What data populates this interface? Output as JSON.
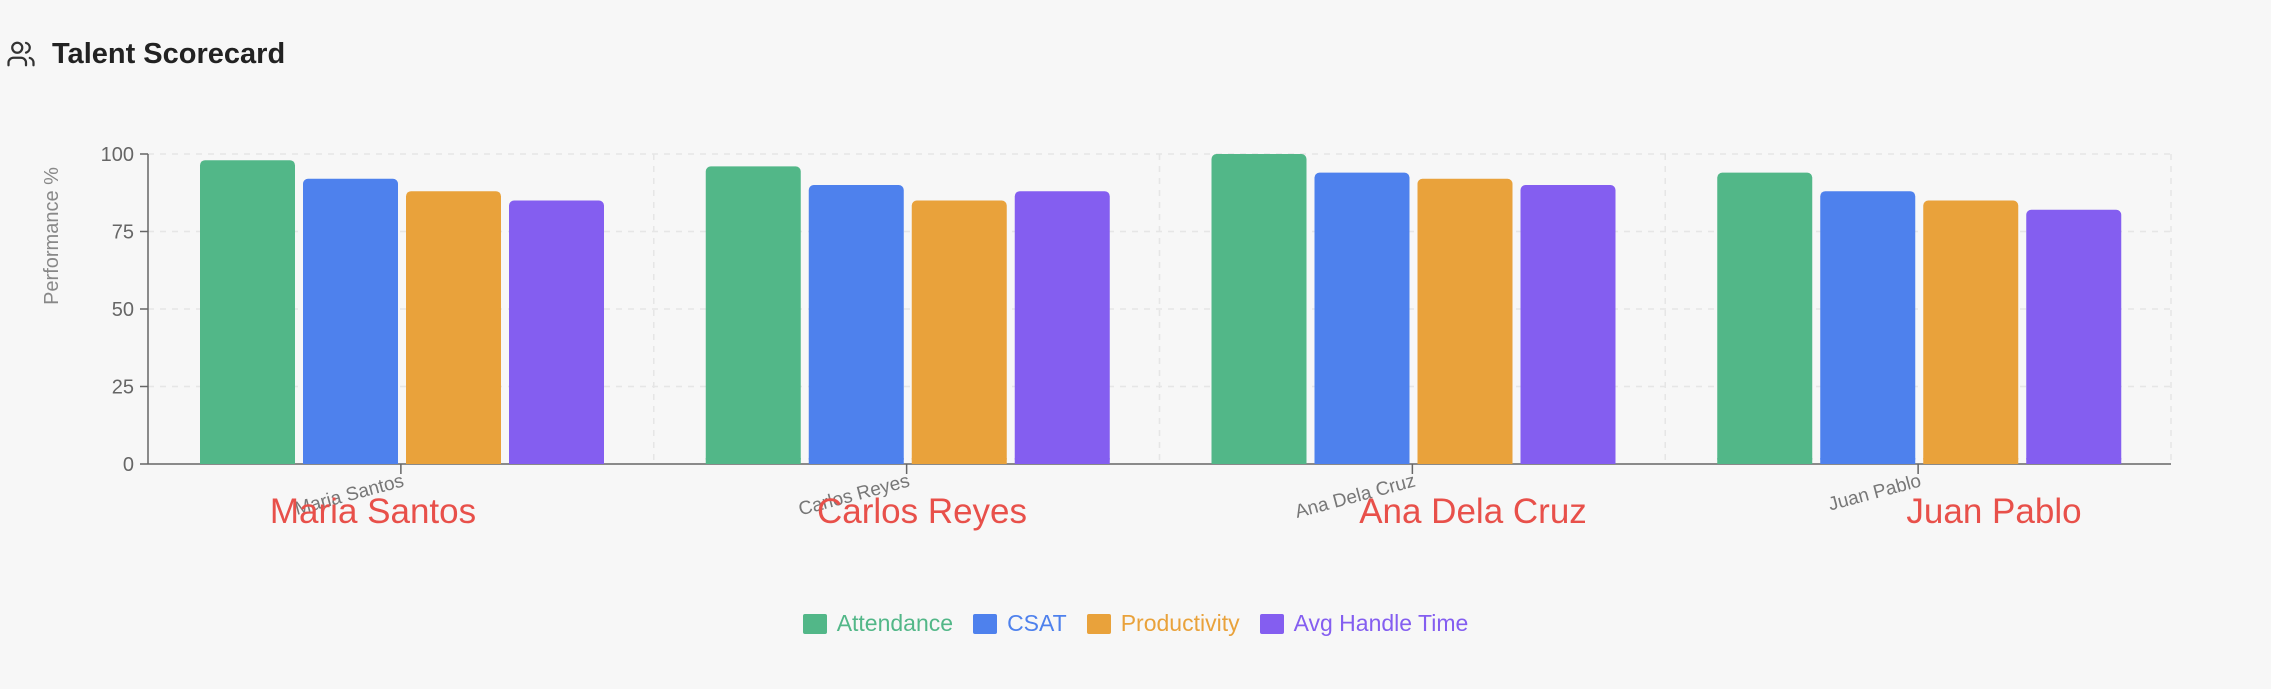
{
  "header": {
    "title": "Talent Scorecard",
    "icon": "users-icon"
  },
  "colors": {
    "Attendance": "#52b788",
    "CSAT": "#4e81ed",
    "Productivity": "#e9a23b",
    "Avg Handle Time": "#845ef0",
    "overlay_label": "#e8504a"
  },
  "chart_data": {
    "type": "bar",
    "categories": [
      "Maria Santos",
      "Carlos Reyes",
      "Ana Dela Cruz",
      "Juan Pablo"
    ],
    "series": [
      {
        "name": "Attendance",
        "values": [
          98,
          96,
          100,
          94
        ]
      },
      {
        "name": "CSAT",
        "values": [
          92,
          90,
          94,
          88
        ]
      },
      {
        "name": "Productivity",
        "values": [
          88,
          85,
          92,
          85
        ]
      },
      {
        "name": "Avg Handle Time",
        "values": [
          85,
          88,
          90,
          82
        ]
      }
    ],
    "ylabel": "Performance %",
    "ylim": [
      0,
      100
    ],
    "yticks": [
      0,
      25,
      50,
      75,
      100
    ],
    "grid": true,
    "legend": "bottom-center",
    "overlay_labels": [
      "Maria Santos",
      "Carlos Reyes",
      "Ana Dela Cruz",
      "Juan Pablo"
    ]
  }
}
